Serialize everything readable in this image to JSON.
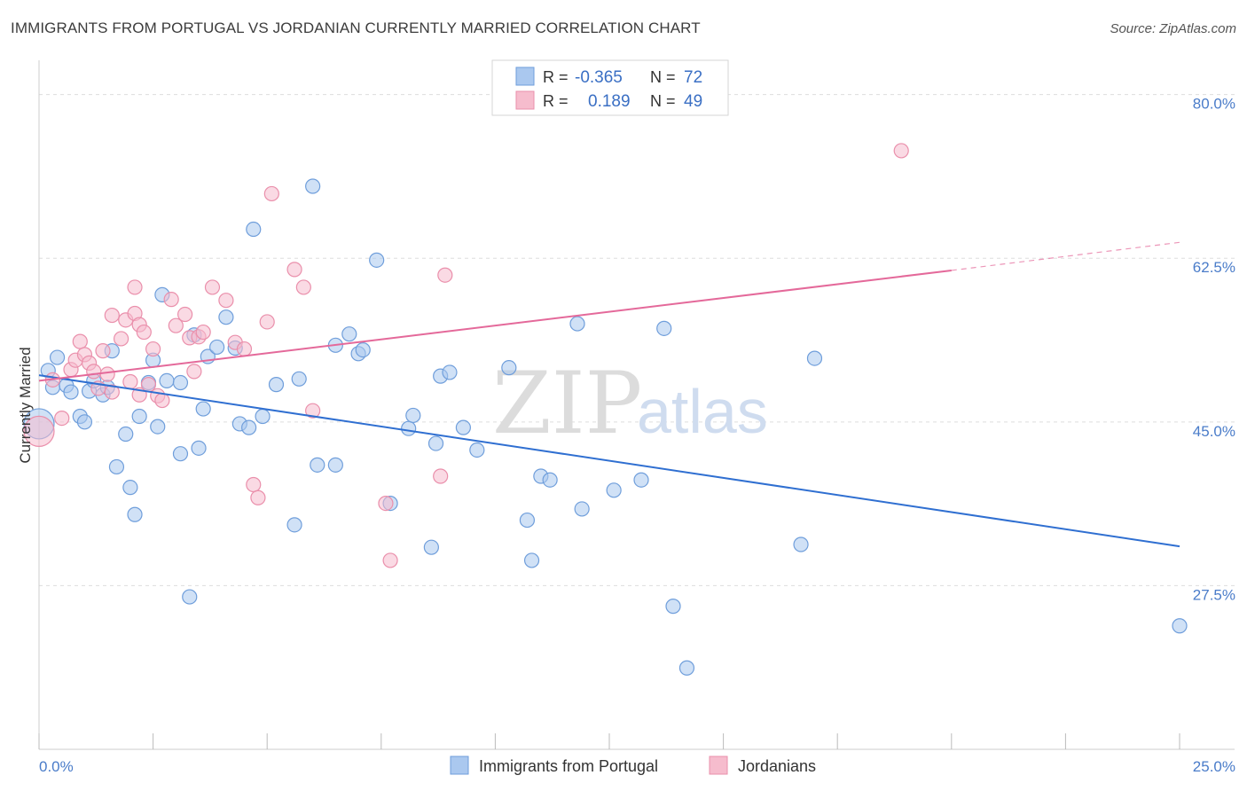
{
  "title": "IMMIGRANTS FROM PORTUGAL VS JORDANIAN CURRENTLY MARRIED CORRELATION CHART",
  "source": "Source: ZipAtlas.com",
  "watermark": {
    "zip": "ZIP",
    "atlas": "atlas"
  },
  "colors": {
    "blue_fill": "#aac8ef",
    "blue_stroke": "#6f9edb",
    "blue_line": "#2f6fd1",
    "pink_fill": "#f6bccd",
    "pink_stroke": "#ea8fab",
    "pink_line": "#e4699a",
    "grid": "#dddddd",
    "axis_text": "#4a7cc9"
  },
  "legend": {
    "rows": [
      {
        "r_label": "R =",
        "r_value": "-0.365",
        "n_label": "N =",
        "n_value": "72"
      },
      {
        "r_label": "R =",
        "r_value": "0.189",
        "n_label": "N =",
        "n_value": "49"
      }
    ]
  },
  "bottom_legend": [
    "Immigrants from Portugal",
    "Jordanians"
  ],
  "chart_data": {
    "type": "scatter",
    "xlabel": "",
    "ylabel": "Currently Married",
    "xlim": [
      0,
      25
    ],
    "ylim": [
      10,
      83
    ],
    "x_tick_labels": [
      "0.0%",
      "25.0%"
    ],
    "y_ticks": [
      27.5,
      45.0,
      62.5,
      80.0
    ],
    "y_tick_labels": [
      "27.5%",
      "45.0%",
      "62.5%",
      "80.0%"
    ],
    "grid": true,
    "legend_position": "top-center",
    "series": [
      {
        "name": "Immigrants from Portugal",
        "r": -0.365,
        "n": 72,
        "trend": {
          "x0": 0,
          "y0": 50.0,
          "x1": 25,
          "y1": 31.7
        },
        "points": [
          [
            0.0,
            44.8,
            3
          ],
          [
            0.2,
            50.5,
            1
          ],
          [
            0.3,
            48.7,
            1
          ],
          [
            0.4,
            51.9,
            1
          ],
          [
            0.6,
            48.9,
            1
          ],
          [
            0.7,
            48.2,
            1
          ],
          [
            0.9,
            45.6,
            1
          ],
          [
            1.0,
            45.0,
            1
          ],
          [
            1.1,
            48.3,
            1
          ],
          [
            1.2,
            49.4,
            1
          ],
          [
            1.4,
            47.9,
            1
          ],
          [
            1.5,
            48.7,
            1
          ],
          [
            1.6,
            52.6,
            1
          ],
          [
            1.7,
            40.2,
            1
          ],
          [
            1.9,
            43.7,
            1
          ],
          [
            2.0,
            38.0,
            1
          ],
          [
            2.1,
            35.1,
            1
          ],
          [
            2.2,
            45.6,
            1
          ],
          [
            2.4,
            49.2,
            1
          ],
          [
            2.5,
            51.6,
            1
          ],
          [
            2.6,
            44.5,
            1
          ],
          [
            2.7,
            58.6,
            1
          ],
          [
            2.8,
            49.4,
            1
          ],
          [
            3.1,
            49.2,
            1
          ],
          [
            3.1,
            41.6,
            1
          ],
          [
            3.3,
            26.3,
            1
          ],
          [
            3.4,
            54.3,
            1
          ],
          [
            3.5,
            42.2,
            1
          ],
          [
            3.6,
            46.4,
            1
          ],
          [
            3.7,
            52.0,
            1
          ],
          [
            3.9,
            53.0,
            1
          ],
          [
            4.1,
            56.2,
            1
          ],
          [
            4.3,
            52.9,
            1
          ],
          [
            4.4,
            44.8,
            1
          ],
          [
            4.6,
            44.4,
            1
          ],
          [
            4.7,
            65.6,
            1
          ],
          [
            4.9,
            45.6,
            1
          ],
          [
            5.2,
            49.0,
            1
          ],
          [
            5.7,
            49.6,
            1
          ],
          [
            5.6,
            34.0,
            1
          ],
          [
            6.0,
            70.2,
            1
          ],
          [
            6.1,
            40.4,
            1
          ],
          [
            6.5,
            40.4,
            1
          ],
          [
            6.5,
            53.2,
            1
          ],
          [
            6.8,
            54.4,
            1
          ],
          [
            7.0,
            52.3,
            1
          ],
          [
            7.1,
            52.7,
            1
          ],
          [
            7.4,
            62.3,
            1
          ],
          [
            7.7,
            36.3,
            1
          ],
          [
            8.1,
            44.3,
            1
          ],
          [
            8.2,
            45.7,
            1
          ],
          [
            8.6,
            31.6,
            1
          ],
          [
            8.7,
            42.7,
            1
          ],
          [
            8.8,
            49.9,
            1
          ],
          [
            9.0,
            50.3,
            1
          ],
          [
            9.3,
            44.4,
            1
          ],
          [
            9.6,
            42.0,
            1
          ],
          [
            10.3,
            50.8,
            1
          ],
          [
            10.7,
            34.5,
            1
          ],
          [
            11.0,
            39.2,
            1
          ],
          [
            11.2,
            38.8,
            1
          ],
          [
            11.8,
            55.5,
            1
          ],
          [
            11.9,
            35.7,
            1
          ],
          [
            12.6,
            37.7,
            1
          ],
          [
            13.2,
            38.8,
            1
          ],
          [
            13.7,
            55.0,
            1
          ],
          [
            13.9,
            25.3,
            1
          ],
          [
            14.2,
            18.7,
            1
          ],
          [
            16.7,
            31.9,
            1
          ],
          [
            17.0,
            51.8,
            1
          ],
          [
            25.0,
            23.2,
            1
          ],
          [
            10.8,
            30.2,
            1
          ]
        ]
      },
      {
        "name": "Jordanians",
        "r": 0.189,
        "n": 49,
        "trend": {
          "x0": 0,
          "y0": 49.4,
          "x1": 20,
          "y1": 61.2,
          "dash_to_x": 25,
          "dash_to_y": 64.2
        },
        "points": [
          [
            0.0,
            44.0,
            3
          ],
          [
            0.3,
            49.5,
            1
          ],
          [
            0.5,
            45.4,
            1
          ],
          [
            0.7,
            50.6,
            1
          ],
          [
            0.8,
            51.6,
            1
          ],
          [
            0.9,
            53.6,
            1
          ],
          [
            1.0,
            52.2,
            1
          ],
          [
            1.1,
            51.3,
            1
          ],
          [
            1.2,
            50.4,
            1
          ],
          [
            1.3,
            48.6,
            1
          ],
          [
            1.4,
            52.6,
            1
          ],
          [
            1.5,
            50.1,
            1
          ],
          [
            1.6,
            48.2,
            1
          ],
          [
            1.6,
            56.4,
            1
          ],
          [
            1.8,
            53.9,
            1
          ],
          [
            1.9,
            55.9,
            1
          ],
          [
            2.0,
            49.3,
            1
          ],
          [
            2.1,
            56.6,
            1
          ],
          [
            2.1,
            59.4,
            1
          ],
          [
            2.2,
            55.4,
            1
          ],
          [
            2.2,
            47.9,
            1
          ],
          [
            2.3,
            54.6,
            1
          ],
          [
            2.4,
            49.0,
            1
          ],
          [
            2.5,
            52.8,
            1
          ],
          [
            2.6,
            47.8,
            1
          ],
          [
            2.7,
            47.3,
            1
          ],
          [
            2.9,
            58.1,
            1
          ],
          [
            3.0,
            55.3,
            1
          ],
          [
            3.2,
            56.5,
            1
          ],
          [
            3.3,
            54.0,
            1
          ],
          [
            3.4,
            50.4,
            1
          ],
          [
            3.5,
            54.1,
            1
          ],
          [
            3.6,
            54.6,
            1
          ],
          [
            3.8,
            59.4,
            1
          ],
          [
            4.1,
            58.0,
            1
          ],
          [
            4.3,
            53.5,
            1
          ],
          [
            4.5,
            52.8,
            1
          ],
          [
            4.7,
            38.3,
            1
          ],
          [
            4.8,
            36.9,
            1
          ],
          [
            5.0,
            55.7,
            1
          ],
          [
            5.1,
            69.4,
            1
          ],
          [
            5.8,
            59.4,
            1
          ],
          [
            5.6,
            61.3,
            1
          ],
          [
            6.0,
            46.2,
            1
          ],
          [
            7.6,
            36.3,
            1
          ],
          [
            7.7,
            30.2,
            1
          ],
          [
            8.8,
            39.2,
            1
          ],
          [
            8.9,
            60.7,
            1
          ],
          [
            18.9,
            74.0,
            1
          ]
        ]
      }
    ]
  }
}
